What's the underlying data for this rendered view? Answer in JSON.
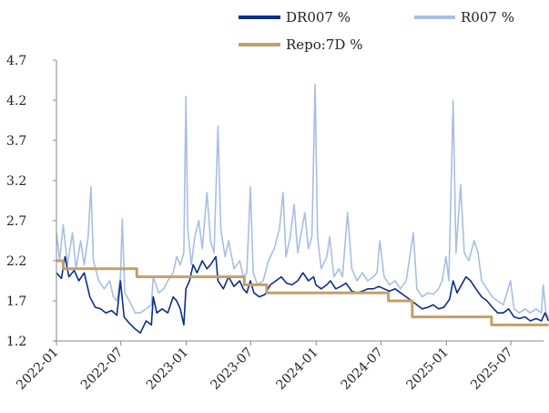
{
  "chart_data": {
    "type": "line",
    "title": "",
    "xlabel": "",
    "ylabel": "",
    "ylim": [
      1.2,
      4.7
    ],
    "y_ticks": [
      "1.2",
      "1.7",
      "2.2",
      "2.7",
      "3.2",
      "3.7",
      "4.2",
      "4.7"
    ],
    "x_ticks": [
      "2022-01",
      "2022-07",
      "2023-01",
      "2023-07",
      "2024-01",
      "2024-07",
      "2025-01",
      "2025-07"
    ],
    "x_range": [
      "2022-01",
      "2025-10"
    ],
    "grid": false,
    "legend_position": "top",
    "series": [
      {
        "name": "DR007 %",
        "color": "#0b2f8a",
        "points": [
          [
            "2022-01-01",
            2.05
          ],
          [
            "2022-01-15",
            1.98
          ],
          [
            "2022-01-25",
            2.25
          ],
          [
            "2022-02-05",
            2.0
          ],
          [
            "2022-02-20",
            2.08
          ],
          [
            "2022-03-05",
            1.95
          ],
          [
            "2022-03-20",
            2.05
          ],
          [
            "2022-04-05",
            1.75
          ],
          [
            "2022-04-20",
            1.62
          ],
          [
            "2022-05-05",
            1.6
          ],
          [
            "2022-05-20",
            1.55
          ],
          [
            "2022-06-05",
            1.58
          ],
          [
            "2022-06-20",
            1.52
          ],
          [
            "2022-06-30",
            1.95
          ],
          [
            "2022-07-10",
            1.5
          ],
          [
            "2022-07-25",
            1.42
          ],
          [
            "2022-08-10",
            1.35
          ],
          [
            "2022-08-25",
            1.3
          ],
          [
            "2022-09-10",
            1.45
          ],
          [
            "2022-09-25",
            1.4
          ],
          [
            "2022-09-30",
            1.75
          ],
          [
            "2022-10-10",
            1.55
          ],
          [
            "2022-10-25",
            1.6
          ],
          [
            "2022-11-10",
            1.55
          ],
          [
            "2022-11-25",
            1.75
          ],
          [
            "2022-12-05",
            1.7
          ],
          [
            "2022-12-15",
            1.6
          ],
          [
            "2022-12-25",
            1.4
          ],
          [
            "2022-12-31",
            1.85
          ],
          [
            "2023-01-10",
            1.95
          ],
          [
            "2023-01-20",
            2.15
          ],
          [
            "2023-01-31",
            2.05
          ],
          [
            "2023-02-15",
            2.2
          ],
          [
            "2023-02-28",
            2.1
          ],
          [
            "2023-03-10",
            2.15
          ],
          [
            "2023-03-25",
            2.25
          ],
          [
            "2023-03-31",
            1.95
          ],
          [
            "2023-04-15",
            1.85
          ],
          [
            "2023-04-30",
            2.0
          ],
          [
            "2023-05-15",
            1.88
          ],
          [
            "2023-05-31",
            1.95
          ],
          [
            "2023-06-10",
            1.85
          ],
          [
            "2023-06-20",
            1.8
          ],
          [
            "2023-06-30",
            1.95
          ],
          [
            "2023-07-10",
            1.8
          ],
          [
            "2023-07-25",
            1.75
          ],
          [
            "2023-08-10",
            1.78
          ],
          [
            "2023-08-25",
            1.9
          ],
          [
            "2023-09-10",
            1.95
          ],
          [
            "2023-09-25",
            2.0
          ],
          [
            "2023-10-10",
            1.92
          ],
          [
            "2023-10-25",
            1.9
          ],
          [
            "2023-11-10",
            1.95
          ],
          [
            "2023-11-25",
            2.05
          ],
          [
            "2023-12-10",
            1.95
          ],
          [
            "2023-12-25",
            2.0
          ],
          [
            "2023-12-31",
            1.9
          ],
          [
            "2024-01-15",
            1.85
          ],
          [
            "2024-01-31",
            1.9
          ],
          [
            "2024-02-10",
            1.95
          ],
          [
            "2024-02-25",
            1.85
          ],
          [
            "2024-03-10",
            1.88
          ],
          [
            "2024-03-25",
            1.92
          ],
          [
            "2024-04-10",
            1.82
          ],
          [
            "2024-04-25",
            1.8
          ],
          [
            "2024-05-10",
            1.82
          ],
          [
            "2024-05-25",
            1.85
          ],
          [
            "2024-06-10",
            1.85
          ],
          [
            "2024-06-25",
            1.88
          ],
          [
            "2024-07-10",
            1.85
          ],
          [
            "2024-07-25",
            1.82
          ],
          [
            "2024-08-10",
            1.85
          ],
          [
            "2024-08-25",
            1.8
          ],
          [
            "2024-09-10",
            1.75
          ],
          [
            "2024-09-25",
            1.7
          ],
          [
            "2024-10-10",
            1.65
          ],
          [
            "2024-10-25",
            1.6
          ],
          [
            "2024-11-10",
            1.62
          ],
          [
            "2024-11-25",
            1.65
          ],
          [
            "2024-12-10",
            1.6
          ],
          [
            "2024-12-25",
            1.62
          ],
          [
            "2025-01-10",
            1.72
          ],
          [
            "2025-01-20",
            1.95
          ],
          [
            "2025-01-31",
            1.8
          ],
          [
            "2025-02-10",
            1.88
          ],
          [
            "2025-02-25",
            2.0
          ],
          [
            "2025-03-10",
            1.95
          ],
          [
            "2025-03-25",
            1.85
          ],
          [
            "2025-04-10",
            1.75
          ],
          [
            "2025-04-25",
            1.7
          ],
          [
            "2025-05-10",
            1.62
          ],
          [
            "2025-05-25",
            1.55
          ],
          [
            "2025-06-10",
            1.55
          ],
          [
            "2025-06-25",
            1.6
          ],
          [
            "2025-07-10",
            1.5
          ],
          [
            "2025-07-25",
            1.48
          ],
          [
            "2025-08-10",
            1.5
          ],
          [
            "2025-08-25",
            1.45
          ],
          [
            "2025-09-10",
            1.48
          ],
          [
            "2025-09-25",
            1.45
          ],
          [
            "2025-10-05",
            1.55
          ],
          [
            "2025-10-15",
            1.45
          ]
        ]
      },
      {
        "name": "R007 %",
        "color": "#a9bee4",
        "points": [
          [
            "2022-01-01",
            2.55
          ],
          [
            "2022-01-10",
            2.2
          ],
          [
            "2022-01-20",
            2.65
          ],
          [
            "2022-02-01",
            2.15
          ],
          [
            "2022-02-15",
            2.55
          ],
          [
            "2022-02-25",
            2.1
          ],
          [
            "2022-03-10",
            2.45
          ],
          [
            "2022-03-20",
            2.15
          ],
          [
            "2022-03-31",
            2.5
          ],
          [
            "2022-04-08",
            3.12
          ],
          [
            "2022-04-15",
            2.2
          ],
          [
            "2022-04-30",
            1.95
          ],
          [
            "2022-05-15",
            1.85
          ],
          [
            "2022-05-31",
            1.95
          ],
          [
            "2022-06-10",
            1.75
          ],
          [
            "2022-06-20",
            1.7
          ],
          [
            "2022-06-30",
            2.0
          ],
          [
            "2022-07-05",
            2.72
          ],
          [
            "2022-07-12",
            1.8
          ],
          [
            "2022-07-25",
            1.7
          ],
          [
            "2022-08-10",
            1.55
          ],
          [
            "2022-08-25",
            1.55
          ],
          [
            "2022-09-10",
            1.6
          ],
          [
            "2022-09-25",
            1.65
          ],
          [
            "2022-09-30",
            2.0
          ],
          [
            "2022-10-15",
            1.8
          ],
          [
            "2022-10-30",
            1.85
          ],
          [
            "2022-11-10",
            1.95
          ],
          [
            "2022-11-25",
            2.05
          ],
          [
            "2022-12-05",
            2.25
          ],
          [
            "2022-12-15",
            2.15
          ],
          [
            "2022-12-25",
            2.3
          ],
          [
            "2022-12-31",
            4.25
          ],
          [
            "2023-01-05",
            2.6
          ],
          [
            "2023-01-15",
            2.15
          ],
          [
            "2023-01-25",
            2.5
          ],
          [
            "2023-02-05",
            2.7
          ],
          [
            "2023-02-15",
            2.35
          ],
          [
            "2023-02-28",
            3.05
          ],
          [
            "2023-03-10",
            2.45
          ],
          [
            "2023-03-20",
            2.3
          ],
          [
            "2023-03-31",
            3.88
          ],
          [
            "2023-04-08",
            2.6
          ],
          [
            "2023-04-20",
            2.25
          ],
          [
            "2023-04-30",
            2.45
          ],
          [
            "2023-05-15",
            2.1
          ],
          [
            "2023-05-31",
            2.2
          ],
          [
            "2023-06-10",
            2.0
          ],
          [
            "2023-06-20",
            2.05
          ],
          [
            "2023-06-30",
            3.12
          ],
          [
            "2023-07-08",
            2.05
          ],
          [
            "2023-07-20",
            1.9
          ],
          [
            "2023-08-05",
            1.95
          ],
          [
            "2023-08-20",
            2.2
          ],
          [
            "2023-09-05",
            2.35
          ],
          [
            "2023-09-20",
            2.6
          ],
          [
            "2023-09-30",
            3.05
          ],
          [
            "2023-10-08",
            2.25
          ],
          [
            "2023-10-20",
            2.5
          ],
          [
            "2023-10-31",
            2.9
          ],
          [
            "2023-11-10",
            2.3
          ],
          [
            "2023-11-20",
            2.55
          ],
          [
            "2023-11-30",
            2.8
          ],
          [
            "2023-12-10",
            2.35
          ],
          [
            "2023-12-20",
            2.5
          ],
          [
            "2023-12-29",
            4.4
          ],
          [
            "2024-01-05",
            2.5
          ],
          [
            "2024-01-15",
            2.1
          ],
          [
            "2024-01-31",
            2.25
          ],
          [
            "2024-02-08",
            2.5
          ],
          [
            "2024-02-20",
            2.0
          ],
          [
            "2024-03-05",
            2.1
          ],
          [
            "2024-03-15",
            2.0
          ],
          [
            "2024-03-29",
            2.8
          ],
          [
            "2024-04-10",
            2.1
          ],
          [
            "2024-04-25",
            1.95
          ],
          [
            "2024-05-10",
            2.05
          ],
          [
            "2024-05-25",
            1.95
          ],
          [
            "2024-06-10",
            2.0
          ],
          [
            "2024-06-20",
            2.05
          ],
          [
            "2024-06-28",
            2.45
          ],
          [
            "2024-07-10",
            2.0
          ],
          [
            "2024-07-25",
            1.9
          ],
          [
            "2024-08-10",
            1.95
          ],
          [
            "2024-08-25",
            1.85
          ],
          [
            "2024-09-10",
            1.95
          ],
          [
            "2024-09-30",
            2.55
          ],
          [
            "2024-10-10",
            1.85
          ],
          [
            "2024-10-25",
            1.75
          ],
          [
            "2024-11-10",
            1.8
          ],
          [
            "2024-11-25",
            1.78
          ],
          [
            "2024-12-10",
            1.85
          ],
          [
            "2024-12-20",
            1.95
          ],
          [
            "2024-12-31",
            2.25
          ],
          [
            "2025-01-08",
            1.95
          ],
          [
            "2025-01-20",
            4.2
          ],
          [
            "2025-01-28",
            2.3
          ],
          [
            "2025-02-10",
            3.15
          ],
          [
            "2025-02-20",
            2.3
          ],
          [
            "2025-03-05",
            2.2
          ],
          [
            "2025-03-20",
            2.45
          ],
          [
            "2025-03-31",
            2.3
          ],
          [
            "2025-04-10",
            1.95
          ],
          [
            "2025-04-25",
            1.85
          ],
          [
            "2025-05-10",
            1.75
          ],
          [
            "2025-05-25",
            1.7
          ],
          [
            "2025-06-10",
            1.65
          ],
          [
            "2025-06-30",
            1.95
          ],
          [
            "2025-07-10",
            1.6
          ],
          [
            "2025-07-25",
            1.55
          ],
          [
            "2025-08-10",
            1.6
          ],
          [
            "2025-08-25",
            1.55
          ],
          [
            "2025-09-10",
            1.6
          ],
          [
            "2025-09-25",
            1.55
          ],
          [
            "2025-09-30",
            1.9
          ],
          [
            "2025-10-08",
            1.55
          ],
          [
            "2025-10-15",
            1.5
          ]
        ]
      },
      {
        "name": "Repo:7D %",
        "color": "#c0a06b",
        "points": [
          [
            "2022-01-01",
            2.2
          ],
          [
            "2022-01-20",
            2.2
          ],
          [
            "2022-01-20",
            2.1
          ],
          [
            "2022-08-15",
            2.1
          ],
          [
            "2022-08-15",
            2.0
          ],
          [
            "2023-06-13",
            2.0
          ],
          [
            "2023-06-13",
            1.9
          ],
          [
            "2023-08-15",
            1.9
          ],
          [
            "2023-08-15",
            1.8
          ],
          [
            "2024-07-22",
            1.8
          ],
          [
            "2024-07-22",
            1.7
          ],
          [
            "2024-09-27",
            1.7
          ],
          [
            "2024-09-27",
            1.5
          ],
          [
            "2025-05-08",
            1.5
          ],
          [
            "2025-05-08",
            1.4
          ],
          [
            "2025-10-15",
            1.4
          ]
        ]
      }
    ]
  }
}
